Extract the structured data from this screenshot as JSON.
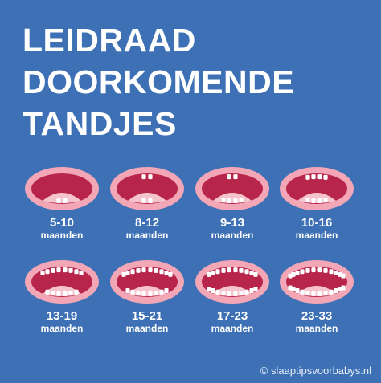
{
  "title": [
    "LEIDRAAD",
    "DOORKOMENDE",
    "TANDJES"
  ],
  "stages": [
    {
      "age": "5-10",
      "unit": "maanden",
      "upper_teeth": 0,
      "lower_teeth": 2
    },
    {
      "age": "8-12",
      "unit": "maanden",
      "upper_teeth": 2,
      "lower_teeth": 2
    },
    {
      "age": "9-13",
      "unit": "maanden",
      "upper_teeth": 2,
      "lower_teeth": 4
    },
    {
      "age": "10-16",
      "unit": "maanden",
      "upper_teeth": 4,
      "lower_teeth": 4
    },
    {
      "age": "13-19",
      "unit": "maanden",
      "upper_teeth": 8,
      "lower_teeth": 6
    },
    {
      "age": "15-21",
      "unit": "maanden",
      "upper_teeth": 10,
      "lower_teeth": 8
    },
    {
      "age": "17-23",
      "unit": "maanden",
      "upper_teeth": 10,
      "lower_teeth": 10
    },
    {
      "age": "23-33",
      "unit": "maanden",
      "upper_teeth": 12,
      "lower_teeth": 12
    }
  ],
  "credit": "© slaaptipsvoorbabys.nl",
  "colors": {
    "background": "#3d70b4",
    "lips": "#f3a7b6",
    "mouth_inside": "#b7254a",
    "tongue": "#f5c3cc",
    "teeth": "#ffffff"
  }
}
